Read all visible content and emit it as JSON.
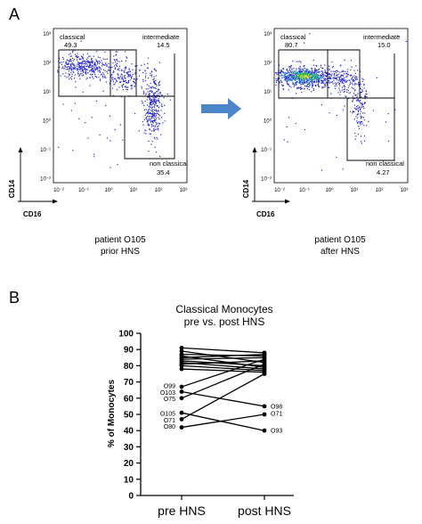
{
  "panel_a": {
    "letter": "A",
    "x_axis_label": "CD16",
    "y_axis_label": "CD14",
    "y_ticks": [
      "10³",
      "10²",
      "10¹",
      "10⁰",
      "10⁻¹",
      "10⁻²"
    ],
    "x_ticks": [
      "10⁻²",
      "10⁻¹",
      "10⁰",
      "10¹",
      "10²",
      "10³"
    ],
    "arrow_color": "#4a86c8",
    "dot_color": "#2a2ad0",
    "plots": [
      {
        "gates": {
          "classical": {
            "label": "classical",
            "value": "49.3"
          },
          "intermediate": {
            "label": "intermediate",
            "value": "14.5"
          },
          "nonclassical": {
            "label": "non classical",
            "value": "35.4"
          }
        },
        "caption_line1": "patient O105",
        "caption_line2": "prior HNS"
      },
      {
        "gates": {
          "classical": {
            "label": "classical",
            "value": "80.7"
          },
          "intermediate": {
            "label": "intermediate",
            "value": "15.0"
          },
          "nonclassical": {
            "label": "non classical",
            "value": "4.27"
          }
        },
        "caption_line1": "patient O105",
        "caption_line2": "after HNS"
      }
    ]
  },
  "panel_b": {
    "letter": "B",
    "title_line1": "Classical Monocytes",
    "title_line2": "pre vs. post HNS",
    "ylabel": "% of Monocytes",
    "categories": [
      "pre HNS",
      "post HNS"
    ],
    "yticks": [
      "0",
      "10",
      "20",
      "30",
      "40",
      "50",
      "60",
      "70",
      "80",
      "90",
      "100"
    ],
    "left_labels": [
      {
        "text": "O99",
        "value": 67.5
      },
      {
        "text": "O103",
        "value": 63.5
      },
      {
        "text": "O75",
        "value": 59.5
      },
      {
        "text": "O105",
        "value": 50.5
      },
      {
        "text": "O71",
        "value": 46.5
      },
      {
        "text": "O80",
        "value": 42.5
      }
    ],
    "right_labels": [
      {
        "text": "O98",
        "value": 55.0
      },
      {
        "text": "O71",
        "value": 50.5
      },
      {
        "text": "O93",
        "value": 40.0
      }
    ]
  },
  "chart_data": {
    "type": "line",
    "title": "Classical Monocytes pre vs. post HNS",
    "xlabel": "",
    "ylabel": "% of Monocytes",
    "categories": [
      "pre HNS",
      "post HNS"
    ],
    "ylim": [
      0,
      100
    ],
    "series": [
      {
        "values": [
          91,
          88
        ]
      },
      {
        "values": [
          89,
          82
        ]
      },
      {
        "values": [
          87,
          86
        ]
      },
      {
        "values": [
          86,
          79
        ]
      },
      {
        "values": [
          85,
          87
        ]
      },
      {
        "values": [
          84,
          85
        ]
      },
      {
        "values": [
          83,
          80
        ]
      },
      {
        "values": [
          82,
          78
        ]
      },
      {
        "values": [
          81,
          83
        ]
      },
      {
        "values": [
          80,
          77
        ]
      },
      {
        "values": [
          78,
          76
        ]
      },
      {
        "values": [
          67,
          84
        ]
      },
      {
        "values": [
          64,
          55
        ]
      },
      {
        "values": [
          60,
          81
        ]
      },
      {
        "values": [
          51,
          40
        ]
      },
      {
        "values": [
          47,
          75
        ]
      },
      {
        "values": [
          42,
          50
        ]
      }
    ]
  }
}
